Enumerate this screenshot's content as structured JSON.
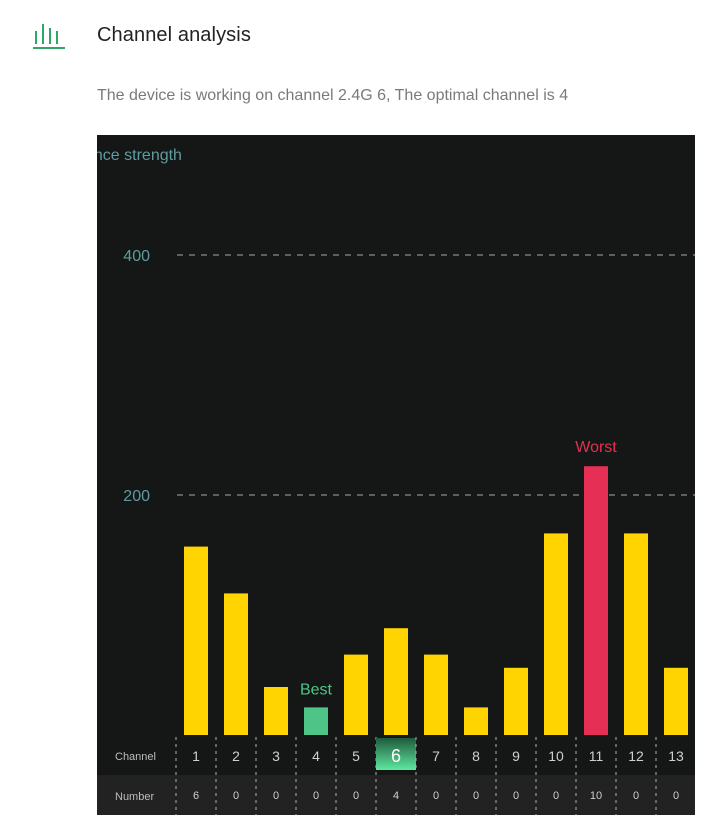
{
  "header": {
    "icon": "bar-chart-icon",
    "title": "Channel analysis"
  },
  "status_text": "The device is working on channel 2.4G 6, The optimal channel is 4",
  "table": {
    "channel_label": "Channel",
    "number_label": "Number"
  },
  "colors": {
    "bar_normal": "#ffd400",
    "bar_best": "#4fc487",
    "bar_worst": "#e62f54",
    "background": "#141715",
    "accent": "#2fa865"
  },
  "chart_data": {
    "type": "bar",
    "ylabel": "ence strength",
    "yticks": [
      200,
      400
    ],
    "ylim": [
      0,
      500
    ],
    "categories": [
      "1",
      "2",
      "3",
      "4",
      "5",
      "6",
      "7",
      "8",
      "9",
      "10",
      "11",
      "12",
      "13"
    ],
    "values": [
      157,
      118,
      40,
      23,
      67,
      89,
      67,
      23,
      56,
      168,
      224,
      168,
      56
    ],
    "numbers": [
      "6",
      "0",
      "0",
      "0",
      "0",
      "4",
      "0",
      "0",
      "0",
      "0",
      "10",
      "0",
      "0"
    ],
    "current_channel": "6",
    "best_channel": "4",
    "worst_channel": "11",
    "best_label": "Best",
    "worst_label": "Worst",
    "grid": "dashed horizontal"
  }
}
